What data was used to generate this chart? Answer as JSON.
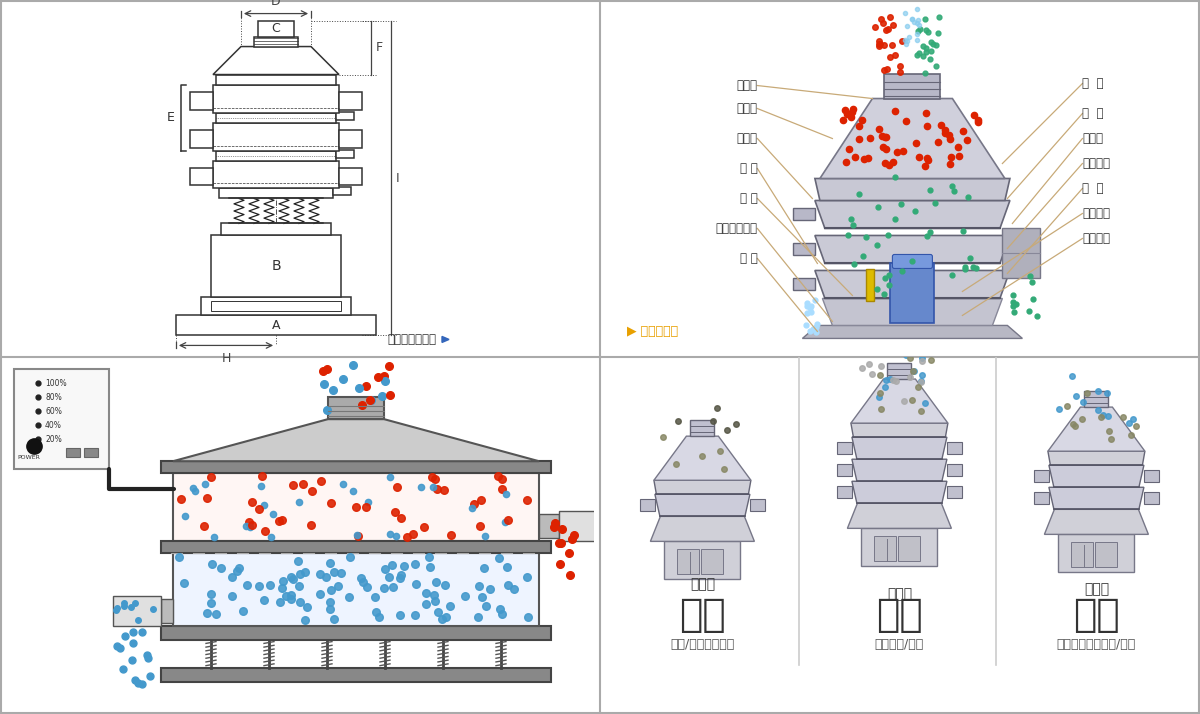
{
  "bg_color": "#ffffff",
  "dim_labels": [
    "A",
    "B",
    "C",
    "D",
    "E",
    "F",
    "H",
    "I"
  ],
  "right_labels_left": [
    "进料口",
    "防尘盖",
    "出料口",
    "束 环",
    "弹 簧",
    "运输固定螺栓",
    "机 座"
  ],
  "right_labels_right": [
    "筛  网",
    "网  架",
    "加重块",
    "上部重锤",
    "筛  盘",
    "振动电机",
    "下部重锤"
  ],
  "bottom_left_title": "分级",
  "bottom_mid_title": "过滤",
  "bottom_right_title": "除杂",
  "bottom_left_sub": "颗粒/粉末准确分级",
  "bottom_mid_sub": "去除异物/结块",
  "bottom_right_sub": "去除液体中的颗粒/异物",
  "single_label": "单层式",
  "three_label": "三层式",
  "double_label": "双层式",
  "struct_label": "结构示意图",
  "outline_label": "外形尺寸示意图",
  "red_color": "#dd2200",
  "blue_color": "#4499cc",
  "green_color": "#33aa77",
  "yellow_color": "#ddaa00",
  "tan_color": "#c8aa78"
}
